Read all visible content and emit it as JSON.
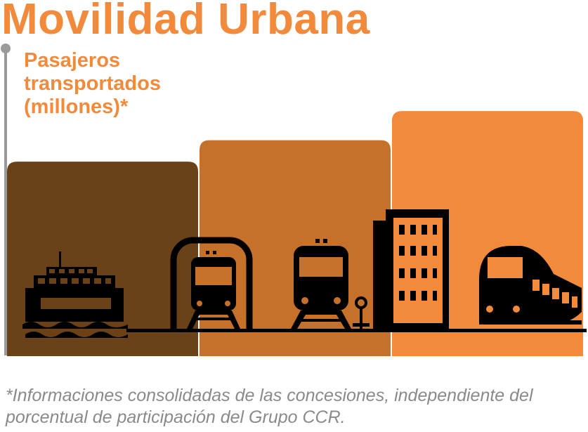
{
  "title": "Movilidad Urbana",
  "subtitle": "Pasajeros transportados (millones)*",
  "footnote": "*Informaciones consolidadas de las concesiones, independiente del porcentual de participación del Grupo CCR.",
  "colors": {
    "accent": "#f28a3c",
    "footnote": "#8a8a8a",
    "axis": "#9a9a9a",
    "icons": "#000000"
  },
  "icons": [
    "ferry-icon",
    "metro-tunnel-icon",
    "train-front-icon",
    "building-icon",
    "high-speed-train-icon"
  ],
  "chart_data": {
    "type": "bar",
    "title": "Movilidad Urbana",
    "ylabel": "Pasajeros transportados (millones)*",
    "categories": [],
    "series": [
      {
        "color": "#6b4117",
        "value": 1.0
      },
      {
        "color": "#c6712a",
        "value": 1.11
      },
      {
        "color": "#f28a3c",
        "value": 1.26
      }
    ],
    "ylim": [
      0,
      1.3
    ],
    "data_labels": "none",
    "grid": false,
    "legend": "none"
  }
}
